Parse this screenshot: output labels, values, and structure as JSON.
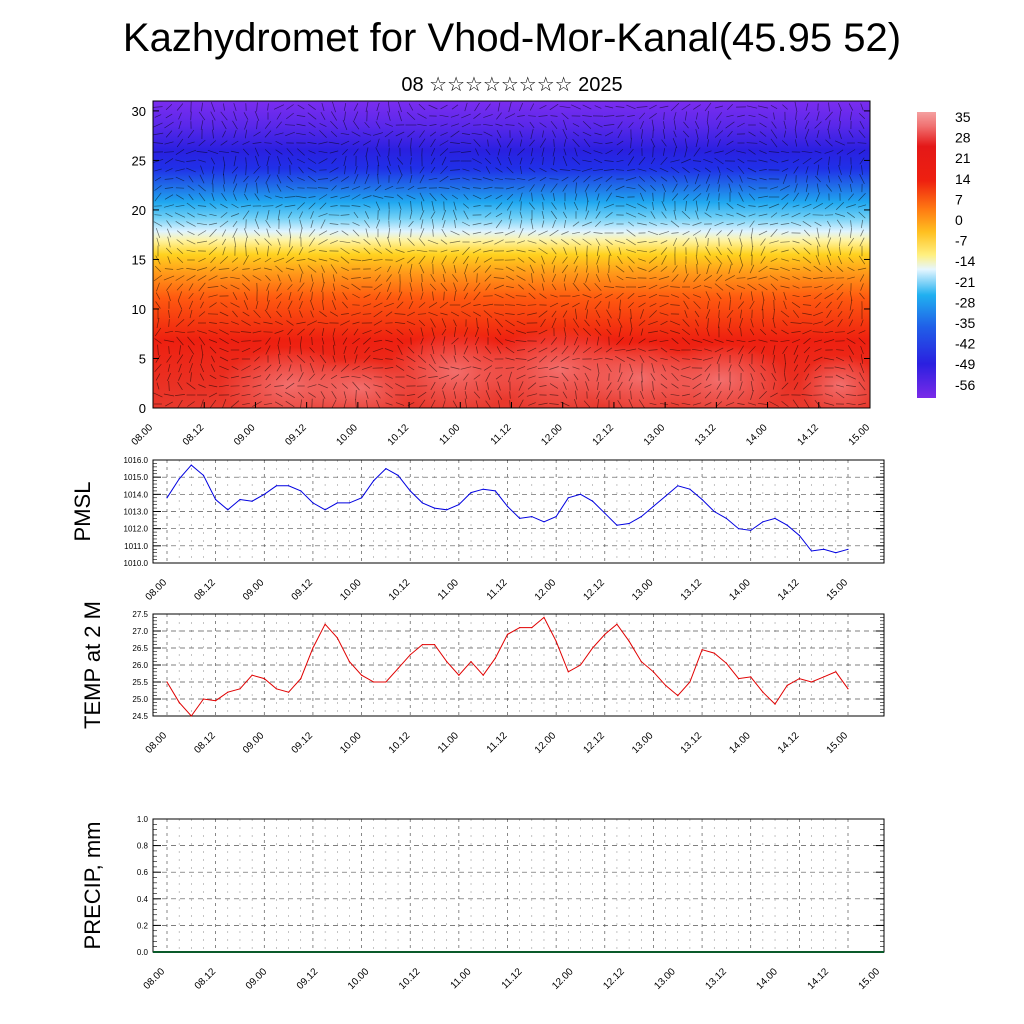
{
  "title": "Kazhydromet for Vhod-Mor-Kanal(45.95 52)",
  "subtitle": "08 ☆☆☆☆☆☆☆☆ 2025",
  "time_labels": [
    "08.00",
    "08.12",
    "09.00",
    "09.12",
    "10.00",
    "10.12",
    "11.00",
    "11.12",
    "12.00",
    "12.12",
    "13.00",
    "13.12",
    "14.00",
    "14.12",
    "15.00"
  ],
  "chart_data": [
    {
      "type": "heatmap",
      "y_ticks": [
        "0",
        "5",
        "10",
        "15",
        "20",
        "25",
        "30"
      ],
      "ylim": [
        0,
        31
      ],
      "colorbar_labels": [
        "35",
        "28",
        "21",
        "14",
        "7",
        "0",
        "-7",
        "-14",
        "-21",
        "-28",
        "-35",
        "-42",
        "-49",
        "-56"
      ],
      "colors": {
        "top": "#7b2df0",
        "blue": "#2030e8",
        "sky": "#20b4f0",
        "pale": "#e0f4ff",
        "yellow": "#ffe830",
        "orange": "#ff9a1a",
        "red": "#ee2010",
        "warm_red": "#f04a4a"
      }
    },
    {
      "type": "line",
      "ylabel": "PMSL",
      "y_ticks": [
        "1016.0",
        "1015.0",
        "1014.0",
        "1013.0",
        "1012.0",
        "1011.0",
        "1010.0"
      ],
      "ylim": [
        1010,
        1016
      ],
      "x_step_hours": 3,
      "color": "#0000e0",
      "values": [
        1013.8,
        1014.9,
        1015.7,
        1015.1,
        1013.7,
        1013.1,
        1013.7,
        1013.6,
        1014.0,
        1014.5,
        1014.5,
        1014.2,
        1013.5,
        1013.1,
        1013.5,
        1013.5,
        1013.8,
        1014.8,
        1015.5,
        1015.1,
        1014.2,
        1013.5,
        1013.2,
        1013.1,
        1013.4,
        1014.1,
        1014.3,
        1014.2,
        1013.3,
        1012.6,
        1012.7,
        1012.4,
        1012.7,
        1013.8,
        1014.0,
        1013.6,
        1012.9,
        1012.2,
        1012.3,
        1012.7,
        1013.3,
        1013.9,
        1014.5,
        1014.3,
        1013.7,
        1013.0,
        1012.6,
        1012.0,
        1011.9,
        1012.4,
        1012.6,
        1012.2,
        1011.6,
        1010.7,
        1010.8,
        1010.6,
        1010.8
      ]
    },
    {
      "type": "line",
      "ylabel": "TEMP at 2 M",
      "y_ticks": [
        "27.5",
        "27.0",
        "26.5",
        "26.0",
        "25.5",
        "25.0",
        "24.5"
      ],
      "ylim": [
        24.5,
        27.5
      ],
      "x_step_hours": 3,
      "color": "#e00000",
      "values": [
        25.5,
        24.9,
        24.5,
        25.0,
        24.95,
        25.2,
        25.3,
        25.7,
        25.6,
        25.3,
        25.2,
        25.6,
        26.5,
        27.2,
        26.8,
        26.1,
        25.7,
        25.5,
        25.5,
        25.9,
        26.3,
        26.6,
        26.6,
        26.1,
        25.7,
        26.1,
        25.7,
        26.2,
        26.9,
        27.1,
        27.1,
        27.4,
        26.7,
        25.8,
        26.0,
        26.5,
        26.9,
        27.2,
        26.7,
        26.1,
        25.8,
        25.4,
        25.1,
        25.5,
        26.45,
        26.35,
        26.05,
        25.6,
        25.65,
        25.2,
        24.85,
        25.4,
        25.6,
        25.5,
        25.65,
        25.8,
        25.3
      ]
    },
    {
      "type": "bar",
      "ylabel": "PRECIP, mm",
      "y_ticks": [
        "1.0",
        "0.8",
        "0.6",
        "0.4",
        "0.2",
        "0.0"
      ],
      "ylim": [
        0,
        1
      ],
      "values": [
        0,
        0,
        0,
        0,
        0,
        0,
        0,
        0,
        0,
        0,
        0,
        0,
        0,
        0,
        0,
        0,
        0,
        0,
        0,
        0,
        0,
        0,
        0,
        0,
        0,
        0,
        0,
        0,
        0,
        0,
        0,
        0,
        0,
        0,
        0,
        0,
        0,
        0,
        0,
        0,
        0,
        0,
        0,
        0,
        0,
        0,
        0,
        0,
        0,
        0,
        0,
        0,
        0,
        0,
        0,
        0,
        0
      ]
    }
  ]
}
